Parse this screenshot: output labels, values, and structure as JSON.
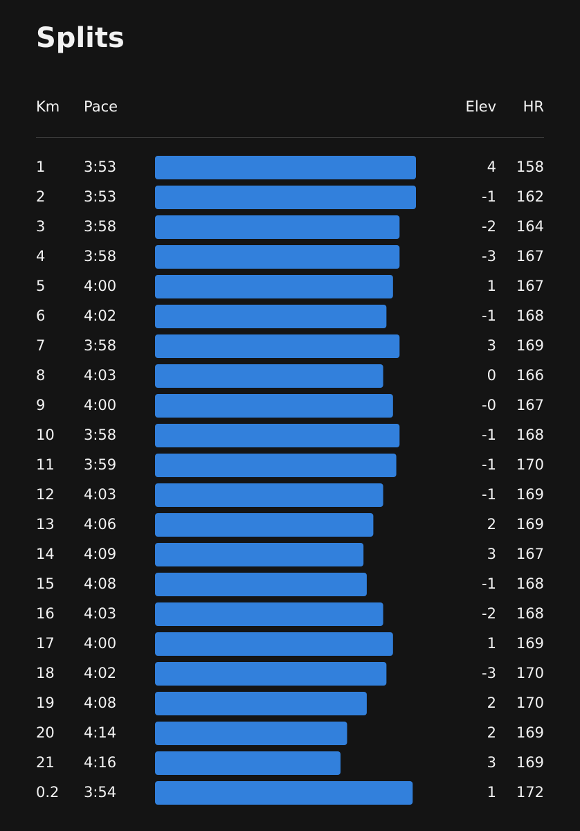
{
  "header": {
    "title": "Splits"
  },
  "table": {
    "columns": [
      "Km",
      "Pace",
      "Elev",
      "HR"
    ],
    "rows": [
      {
        "km": 1,
        "pace": {
          "value": 233,
          "label": "3:53"
        },
        "elev": 4,
        "hr": 158
      },
      {
        "km": 2,
        "pace": {
          "value": 233,
          "label": "3:53"
        },
        "elev": -1,
        "hr": 162
      },
      {
        "km": 3,
        "pace": {
          "value": 238,
          "label": "3:58"
        },
        "elev": -2,
        "hr": 164
      },
      {
        "km": 4,
        "pace": {
          "value": 238,
          "label": "3:58"
        },
        "elev": -3,
        "hr": 167
      },
      {
        "km": 5,
        "pace": {
          "value": 240,
          "label": "4:00"
        },
        "elev": 1,
        "hr": 167
      },
      {
        "km": 6,
        "pace": {
          "value": 242,
          "label": "4:02"
        },
        "elev": -1,
        "hr": 168
      },
      {
        "km": 7,
        "pace": {
          "value": 238,
          "label": "3:58"
        },
        "elev": 3,
        "hr": 169
      },
      {
        "km": 8,
        "pace": {
          "value": 243,
          "label": "4:03"
        },
        "elev": 0,
        "hr": 166
      },
      {
        "km": 9,
        "pace": {
          "value": 240,
          "label": "4:00"
        },
        "elev": {
          "value": 0,
          "label": "-0"
        },
        "hr": 167
      },
      {
        "km": 10,
        "pace": {
          "value": 238,
          "label": "3:58"
        },
        "elev": -1,
        "hr": 168
      },
      {
        "km": 11,
        "pace": {
          "value": 239,
          "label": "3:59"
        },
        "elev": -1,
        "hr": 170
      },
      {
        "km": 12,
        "pace": {
          "value": 243,
          "label": "4:03"
        },
        "elev": -1,
        "hr": 169
      },
      {
        "km": 13,
        "pace": {
          "value": 246,
          "label": "4:06"
        },
        "elev": 2,
        "hr": 169
      },
      {
        "km": 14,
        "pace": {
          "value": 249,
          "label": "4:09"
        },
        "elev": 3,
        "hr": 167
      },
      {
        "km": 15,
        "pace": {
          "value": 248,
          "label": "4:08"
        },
        "elev": -1,
        "hr": 168
      },
      {
        "km": 16,
        "pace": {
          "value": 243,
          "label": "4:03"
        },
        "elev": -2,
        "hr": 168
      },
      {
        "km": 17,
        "pace": {
          "value": 240,
          "label": "4:00"
        },
        "elev": 1,
        "hr": 169
      },
      {
        "km": 18,
        "pace": {
          "value": 242,
          "label": "4:02"
        },
        "elev": -3,
        "hr": 170
      },
      {
        "km": 19,
        "pace": {
          "value": 248,
          "label": "4:08"
        },
        "elev": 2,
        "hr": 170
      },
      {
        "km": 20,
        "pace": {
          "value": 254,
          "label": "4:14"
        },
        "elev": 2,
        "hr": 169
      },
      {
        "km": 21,
        "pace": {
          "value": 256,
          "label": "4:16"
        },
        "elev": 3,
        "hr": 169
      },
      {
        "km": 0.2,
        "pace": {
          "value": 234,
          "label": "3:54"
        },
        "elev": 1,
        "hr": 172
      }
    ]
  }
}
